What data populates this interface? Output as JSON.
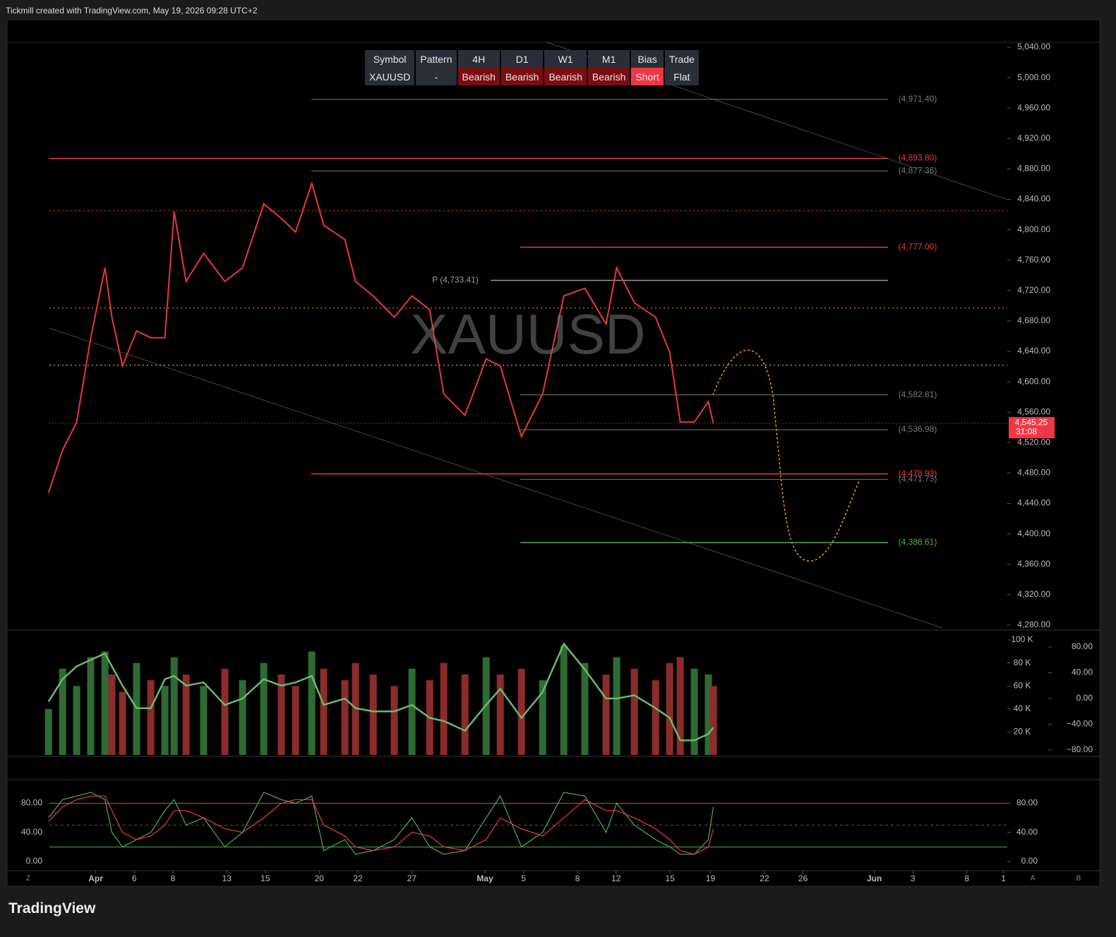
{
  "header": "Tickmill created with TradingView.com, May 19, 2026 09:28 UTC+2",
  "footer": "TradingView",
  "table": {
    "header": [
      "Symbol",
      "Pattern",
      "4H",
      "D1",
      "W1",
      "M1",
      "Bias",
      "Trade"
    ],
    "rows": [
      [
        "XAUUSD",
        "-",
        "Bearish",
        "Bearish",
        "Bearish",
        "Bearish",
        "Short",
        "Flat"
      ]
    ]
  },
  "controls": [
    "Z",
    "A",
    "B"
  ],
  "chart_data": [
    {
      "type": "line",
      "watermark": "XAUUSD",
      "color": "#e53935",
      "x": [
        -2.45,
        -1.72,
        -0.99,
        -0.26,
        0.48,
        0.84,
        1.39,
        2.12,
        2.86,
        3.59,
        4.07,
        4.69,
        5.6,
        6.7,
        7.62,
        8.72,
        9.63,
        10.37,
        11.21,
        11.83,
        12.93,
        13.48,
        14.4,
        15.49,
        16.41,
        17.33,
        18.06,
        19.16,
        20.26,
        20.99,
        22.09,
        23.19,
        24.29,
        25.38,
        26.48,
        27.03,
        27.95,
        29.05,
        29.78,
        30.33,
        31.06,
        31.79,
        32.05
      ],
      "values": [
        4454,
        4510,
        4547,
        4658,
        4750,
        4685,
        4621,
        4667,
        4658,
        4658,
        4824,
        4732,
        4769,
        4732,
        4750,
        4834,
        4815,
        4797,
        4861,
        4806,
        4787,
        4732,
        4713,
        4685,
        4713,
        4695,
        4584,
        4556,
        4630,
        4621,
        4528,
        4584,
        4713,
        4723,
        4676,
        4750,
        4704,
        4685,
        4639,
        4547,
        4547,
        4574,
        4545.25
      ],
      "xlim": [
        -4.6,
        47.3
      ],
      "ylim": [
        4273.5,
        5046.5
      ],
      "xticks": [
        {
          "value": 0,
          "label": "Apr"
        },
        {
          "value": 2,
          "label": "6"
        },
        {
          "value": 4,
          "label": "8"
        },
        {
          "value": 6.8,
          "label": "13"
        },
        {
          "value": 8.8,
          "label": "15"
        },
        {
          "value": 11.6,
          "label": "20"
        },
        {
          "value": 13.6,
          "label": "22"
        },
        {
          "value": 16.4,
          "label": "27"
        },
        {
          "value": 20.2,
          "label": "May"
        },
        {
          "value": 22.2,
          "label": "5"
        },
        {
          "value": 25,
          "label": "8"
        },
        {
          "value": 27,
          "label": "12"
        },
        {
          "value": 29.8,
          "label": "15"
        },
        {
          "value": 31.9,
          "label": "19"
        },
        {
          "value": 34.7,
          "label": "22"
        },
        {
          "value": 36.7,
          "label": "26"
        },
        {
          "value": 40.4,
          "label": "Jun"
        },
        {
          "value": 42.4,
          "label": "3"
        },
        {
          "value": 45.2,
          "label": "8"
        },
        {
          "value": 47.1,
          "label": "1"
        }
      ],
      "yticks": [
        {
          "value": 5040,
          "label": "5,040.00"
        },
        {
          "value": 5000,
          "label": "5,000.00"
        },
        {
          "value": 4960,
          "label": "4,960.00"
        },
        {
          "value": 4920,
          "label": "4,920.00"
        },
        {
          "value": 4880,
          "label": "4,880.00"
        },
        {
          "value": 4840,
          "label": "4,840.00"
        },
        {
          "value": 4800,
          "label": "4,800.00"
        },
        {
          "value": 4760,
          "label": "4,760.00"
        },
        {
          "value": 4720,
          "label": "4,720.00"
        },
        {
          "value": 4680,
          "label": "4,680.00"
        },
        {
          "value": 4640,
          "label": "4,640.00"
        },
        {
          "value": 4600,
          "label": "4,600.00"
        },
        {
          "value": 4560,
          "label": "4,560.00"
        },
        {
          "value": 4520,
          "label": "4,520.00"
        },
        {
          "value": 4480,
          "label": "4,480.00"
        },
        {
          "value": 4440,
          "label": "4,440.00"
        },
        {
          "value": 4400,
          "label": "4,400.00"
        },
        {
          "value": 4360,
          "label": "4,360.00"
        },
        {
          "value": 4320,
          "label": "4,320.00"
        },
        {
          "value": 4280,
          "label": "4,280.00"
        }
      ],
      "levels": [
        {
          "value": 4971.4,
          "label": "(4,971.40)",
          "color": "#777"
        },
        {
          "value": 4893.8,
          "label": "(4,893.80)",
          "color": "#f23645"
        },
        {
          "value": 4877.36,
          "label": "(4,877.36)",
          "color": "#777"
        },
        {
          "value": 4777.0,
          "label": "(4,777.00)",
          "color": "#f23645"
        },
        {
          "value": 4733.41,
          "label": "P (4,733.41)",
          "color": "#999"
        },
        {
          "value": 4582.81,
          "label": "(4,582.81)",
          "color": "#777"
        },
        {
          "value": 4536.98,
          "label": "(4,536.98)",
          "color": "#777"
        },
        {
          "value": 4478.93,
          "label": "(4,478.93)",
          "color": "#f23645"
        },
        {
          "value": 4471.73,
          "label": "(4,471.73)",
          "color": "#777"
        },
        {
          "value": 4388.61,
          "label": "(4,388.61)",
          "color": "#4caf50"
        }
      ],
      "dotted_levels": [
        {
          "value": 4825,
          "color": "#f23645"
        },
        {
          "value": 4697,
          "color": "#ff9800"
        },
        {
          "value": 4622,
          "color": "#cddc39"
        }
      ],
      "last_price": {
        "value": 4545.25,
        "label": "4,545.25"
      },
      "countdown": "31:08"
    },
    {
      "type": "bar",
      "xlim": [
        -4.6,
        47.3
      ],
      "ylim": [
        0,
        107400
      ],
      "y2lim": [
        -87.7,
        104.1
      ],
      "x": [
        -2.45,
        -1.72,
        -0.99,
        -0.26,
        0.48,
        0.84,
        1.39,
        2.12,
        2.86,
        3.59,
        4.07,
        4.69,
        5.6,
        6.7,
        7.62,
        8.72,
        9.63,
        10.37,
        11.21,
        11.83,
        12.93,
        13.48,
        14.4,
        15.49,
        16.41,
        17.33,
        18.06,
        19.16,
        20.26,
        20.99,
        22.09,
        23.19,
        24.29,
        25.38,
        26.48,
        27.03,
        27.95,
        29.05,
        29.78,
        30.33,
        31.06,
        31.79,
        32.05
      ],
      "values": [
        40000,
        75000,
        60000,
        85000,
        90000,
        70000,
        55000,
        80000,
        65000,
        60000,
        85000,
        70000,
        60000,
        75000,
        65000,
        80000,
        70000,
        60000,
        90000,
        75000,
        65000,
        80000,
        70000,
        60000,
        75000,
        65000,
        80000,
        70000,
        85000,
        70000,
        75000,
        65000,
        95000,
        80000,
        70000,
        85000,
        75000,
        65000,
        80000,
        85000,
        75000,
        70000,
        60000
      ],
      "colors": {
        "up": "#2e6b34",
        "down": "#8b2b2b"
      },
      "yticks": [
        {
          "value": 100000,
          "label": "100 K"
        },
        {
          "value": 80000,
          "label": "80 K"
        },
        {
          "value": 60000,
          "label": "60 K"
        },
        {
          "value": 40000,
          "label": "40 K"
        },
        {
          "value": 20000,
          "label": "20 K"
        }
      ],
      "y2ticks": [
        {
          "value": 80,
          "label": "80.00"
        },
        {
          "value": 40,
          "label": "40.00"
        },
        {
          "value": 0,
          "label": "0.00"
        },
        {
          "value": -40,
          "label": "−40.00"
        },
        {
          "value": -80,
          "label": "−80.00"
        }
      ],
      "series": [
        {
          "axis": "y2",
          "color": "#66bb6a",
          "values": [
            -5,
            30,
            50,
            60,
            70,
            50,
            20,
            -15,
            -15,
            30,
            35,
            20,
            25,
            -10,
            0,
            30,
            20,
            25,
            35,
            -10,
            0,
            -15,
            -20,
            -20,
            -10,
            -30,
            -35,
            -50,
            -10,
            15,
            -30,
            10,
            85,
            45,
            0,
            0,
            5,
            -15,
            -30,
            -65,
            -65,
            -55,
            -45
          ]
        }
      ]
    },
    {
      "type": "line",
      "xlim": [
        -4.6,
        47.3
      ],
      "ylim": [
        -10.7,
        111.5
      ],
      "x": [
        -2.45,
        -1.72,
        -0.99,
        -0.26,
        0.48,
        0.84,
        1.39,
        2.12,
        2.86,
        3.59,
        4.07,
        4.69,
        5.6,
        6.7,
        7.62,
        8.72,
        9.63,
        10.37,
        11.21,
        11.83,
        12.93,
        13.48,
        14.4,
        15.49,
        16.41,
        17.33,
        18.06,
        19.16,
        20.26,
        20.99,
        22.09,
        23.19,
        24.29,
        25.38,
        26.48,
        27.03,
        27.95,
        29.05,
        29.78,
        30.33,
        31.06,
        31.79,
        32.05
      ],
      "yticks": [
        {
          "value": 80,
          "label": "80.00"
        },
        {
          "value": 40,
          "label": "40.00"
        },
        {
          "value": 0,
          "label": "0.00"
        }
      ],
      "bands": [
        {
          "value": 80,
          "color": "#f23645"
        },
        {
          "value": 50,
          "color": "#555"
        },
        {
          "value": 20,
          "color": "#4caf50"
        }
      ],
      "series": [
        {
          "color": "#4caf50",
          "values": [
            60,
            85,
            90,
            95,
            85,
            40,
            20,
            30,
            40,
            70,
            85,
            50,
            60,
            20,
            40,
            95,
            85,
            80,
            90,
            15,
            30,
            10,
            15,
            30,
            60,
            20,
            10,
            15,
            60,
            90,
            20,
            40,
            95,
            90,
            40,
            80,
            50,
            30,
            20,
            10,
            10,
            30,
            75
          ]
        },
        {
          "color": "#f23645",
          "values": [
            55,
            75,
            85,
            90,
            90,
            70,
            40,
            30,
            35,
            50,
            70,
            70,
            60,
            45,
            40,
            60,
            80,
            85,
            85,
            50,
            35,
            20,
            15,
            20,
            40,
            35,
            20,
            15,
            30,
            60,
            45,
            35,
            60,
            85,
            70,
            70,
            60,
            45,
            30,
            15,
            10,
            20,
            45
          ]
        }
      ]
    }
  ]
}
